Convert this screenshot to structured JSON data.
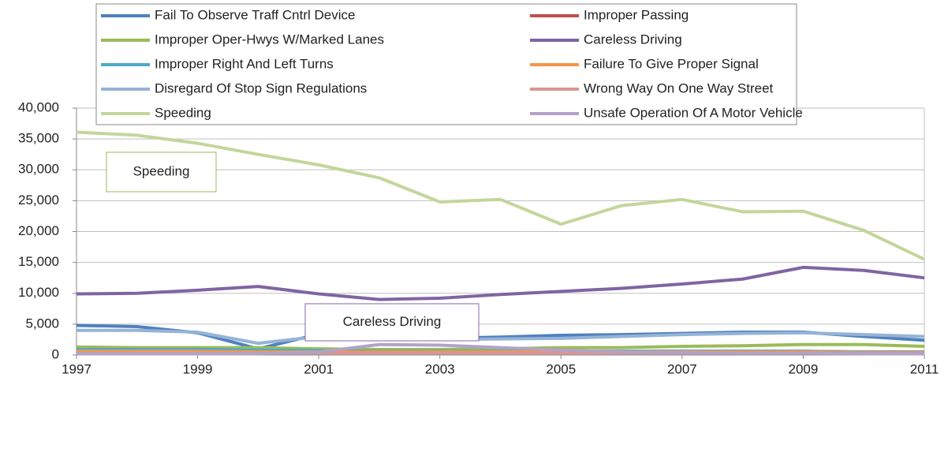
{
  "chart_data": {
    "type": "line",
    "x": [
      1997,
      1998,
      1999,
      2000,
      2001,
      2002,
      2003,
      2004,
      2005,
      2006,
      2007,
      2008,
      2009,
      2010,
      2011
    ],
    "xlim": [
      1997,
      2011
    ],
    "xticks": [
      1997,
      1999,
      2001,
      2003,
      2005,
      2007,
      2009,
      2011
    ],
    "ylim": [
      0,
      40000
    ],
    "yticks": [
      0,
      {
        "value": 5000,
        "label": "5,000"
      },
      {
        "value": 10000,
        "label": "10,000"
      },
      {
        "value": 15000,
        "label": "15,000"
      },
      {
        "value": 20000,
        "label": "20,000"
      },
      {
        "value": 25000,
        "label": "25,000"
      },
      {
        "value": 30000,
        "label": "30,000"
      },
      {
        "value": 35000,
        "label": "35,000"
      },
      {
        "value": 40000,
        "label": "40,000"
      }
    ],
    "grid": true,
    "legend": "top",
    "series": [
      {
        "name": "Fail To Observe Traff Cntrl Device",
        "color": "#4f81bd",
        "values": [
          4800,
          4600,
          3600,
          1000,
          3400,
          3000,
          2700,
          2900,
          3200,
          3300,
          3500,
          3700,
          3700,
          3000,
          2400
        ]
      },
      {
        "name": "Improper Passing",
        "color": "#c0504d",
        "values": [
          1300,
          1100,
          900,
          800,
          700,
          600,
          600,
          600,
          600,
          600,
          600,
          600,
          600,
          500,
          500
        ]
      },
      {
        "name": "Improper Oper-Hwys W/Marked Lanes",
        "color": "#9bbb59",
        "values": [
          1300,
          1200,
          1200,
          1200,
          1000,
          900,
          900,
          1000,
          1200,
          1200,
          1400,
          1500,
          1700,
          1700,
          1400
        ]
      },
      {
        "name": "Careless Driving",
        "color": "#8064a2",
        "values": [
          9900,
          10000,
          10500,
          11100,
          9900,
          9000,
          9200,
          9800,
          10300,
          10800,
          11500,
          12300,
          14200,
          13700,
          12500
        ]
      },
      {
        "name": "Improper Right And Left Turns",
        "color": "#4bacc6",
        "values": [
          900,
          900,
          900,
          800,
          700,
          600,
          600,
          600,
          600,
          600,
          600,
          600,
          600,
          500,
          500
        ]
      },
      {
        "name": "Failure To Give Proper Signal",
        "color": "#f79646",
        "values": [
          600,
          600,
          600,
          500,
          500,
          500,
          500,
          500,
          500,
          500,
          500,
          500,
          500,
          400,
          400
        ]
      },
      {
        "name": "Disregard Of Stop Sign Regulations",
        "color": "#95b3d7",
        "values": [
          4000,
          4000,
          3700,
          1900,
          3000,
          2700,
          2500,
          2600,
          2700,
          3000,
          3300,
          3500,
          3600,
          3300,
          3000
        ]
      },
      {
        "name": "Wrong Way On One Way Street",
        "color": "#d99694",
        "values": [
          300,
          300,
          300,
          300,
          300,
          300,
          300,
          300,
          300,
          300,
          300,
          300,
          300,
          300,
          300
        ]
      },
      {
        "name": "Speeding",
        "color": "#c3d69b",
        "values": [
          36100,
          35600,
          34300,
          32500,
          30800,
          28700,
          24800,
          25200,
          21200,
          24200,
          25200,
          23200,
          23300,
          20200,
          15500
        ]
      },
      {
        "name": "Unsafe Operation Of A Motor Vehicle",
        "color": "#b3a2c7",
        "values": [
          200,
          200,
          200,
          200,
          500,
          1700,
          1600,
          1200,
          800,
          500,
          400,
          300,
          300,
          200,
          200
        ]
      }
    ],
    "annotations": [
      "Speeding",
      "Careless Driving"
    ]
  }
}
